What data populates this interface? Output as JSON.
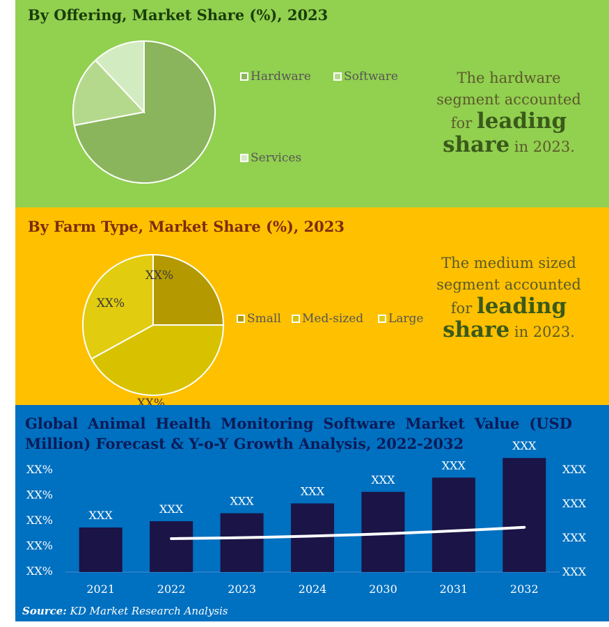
{
  "offering": {
    "title": "By Offering, Market Share (%), 2023",
    "legend": [
      {
        "label": "Hardware",
        "color": "#8ab55c"
      },
      {
        "label": "Software",
        "color": "#b5d98c"
      },
      {
        "label": "Services",
        "color": "#d3ebc0"
      }
    ],
    "callout": {
      "line1": "The hardware",
      "line2": "segment accounted",
      "line3_pre": "for",
      "line3_big": "leading",
      "line4_big": "share",
      "line4_post": "in 2023."
    }
  },
  "farm": {
    "title": "By Farm Type, Market Share (%), 2023",
    "legend": [
      {
        "label": "Small",
        "color": "#b49a00"
      },
      {
        "label": "Med-sized",
        "color": "#d8c200"
      },
      {
        "label": "Large",
        "color": "#e2cc10"
      }
    ],
    "callout": {
      "line1": "The medium sized",
      "line2": "segment accounted",
      "line3_pre": "for",
      "line3_big": "leading",
      "line4_big": "share",
      "line4_post": "in 2023."
    }
  },
  "market": {
    "title": "Global Animal Health Monitoring Software Market Value (USD Million) Forecast & Y-o-Y Growth Analysis, 2022-2032",
    "source_label": "Source:",
    "source_text": "KD Market Research Analysis"
  },
  "chart_data": [
    {
      "type": "pie",
      "title": "By Offering, Market Share (%), 2023",
      "labels": [
        "Hardware",
        "Software",
        "Services"
      ],
      "values": [
        72,
        16,
        12
      ],
      "colors": [
        "#8ab55c",
        "#b5d98c",
        "#d3ebc0"
      ]
    },
    {
      "type": "pie",
      "title": "By Farm Type, Market Share (%), 2023",
      "labels": [
        "Small",
        "Med-sized",
        "Large"
      ],
      "values": [
        25,
        42,
        33
      ],
      "data_labels": [
        "XX%",
        "XX%",
        "XX%"
      ],
      "colors": [
        "#b49a00",
        "#d8c200",
        "#e2cc10"
      ]
    },
    {
      "type": "bar",
      "title": "Global Animal Health Monitoring Software Market Value (USD Million) Forecast & Y-o-Y Growth Analysis, 2022-2032",
      "categories": [
        "2021",
        "2022",
        "2023",
        "2024",
        "2030",
        "2031",
        "2032"
      ],
      "values": [
        50,
        57,
        66,
        77,
        90,
        106,
        128
      ],
      "ylim": [
        0,
        140
      ],
      "bar_labels": [
        "XXX",
        "XXX",
        "XXX",
        "XXX",
        "XXX",
        "XXX",
        "XXX"
      ],
      "bar_color": "#1b1446",
      "line": {
        "categories": [
          "2022",
          "2032"
        ],
        "values": [
          56,
          75
        ],
        "color": "#ffffff"
      },
      "left_axis_ticks": [
        "XX%",
        "XX%",
        "XX%",
        "XX%",
        "XX%"
      ],
      "right_axis_ticks": [
        "XXX",
        "XXX",
        "XXX",
        "XXX"
      ],
      "grid": false
    }
  ]
}
